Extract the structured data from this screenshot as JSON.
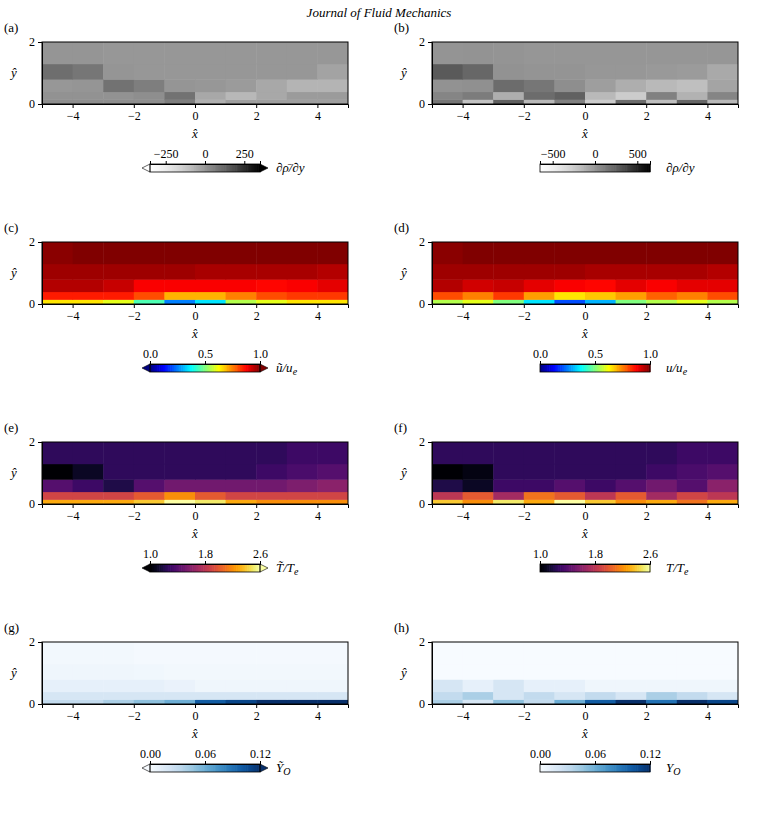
{
  "header": {
    "title": "Journal of Fluid Mechanics"
  },
  "chart_data": [
    {
      "type": "heatmap",
      "panel": "(a)",
      "xlabel": "x̂",
      "ylabel": "ŷ",
      "xlim": [
        -5,
        5
      ],
      "ylim": [
        0,
        2
      ],
      "xticks": [
        {
          "value": -4,
          "label": "−4"
        },
        {
          "value": -2,
          "label": "−2"
        },
        0,
        2,
        4
      ],
      "yticks": [
        0,
        2
      ],
      "x_edges": [
        -5,
        -4,
        -3,
        -2,
        -1,
        0,
        1,
        2,
        3,
        4,
        5
      ],
      "y_edges": [
        0,
        0.15,
        0.4,
        0.8,
        1.3,
        2
      ],
      "values": [
        [
          20,
          20,
          20,
          20,
          60,
          -60,
          -20,
          -20,
          -20,
          -20
        ],
        [
          10,
          10,
          10,
          20,
          90,
          -40,
          -80,
          -40,
          -10,
          -10
        ],
        [
          0,
          5,
          90,
          60,
          5,
          0,
          -10,
          -40,
          -70,
          -70
        ],
        [
          100,
          80,
          5,
          0,
          0,
          0,
          0,
          0,
          0,
          -30
        ],
        [
          5,
          5,
          0,
          0,
          0,
          0,
          0,
          0,
          0,
          0
        ]
      ],
      "colorbar": {
        "label": "∂ρ̄/∂y",
        "range": [
          -350,
          350
        ],
        "ticks": [
          {
            "value": -250,
            "label": "−250"
          },
          0,
          250
        ],
        "color": "Greys"
      }
    },
    {
      "type": "heatmap",
      "panel": "(b)",
      "xlabel": "x̂",
      "ylabel": "ŷ",
      "xlim": [
        -5,
        5
      ],
      "ylim": [
        0,
        2
      ],
      "xticks": [
        {
          "value": -4,
          "label": "−4"
        },
        {
          "value": -2,
          "label": "−2"
        },
        0,
        2,
        4
      ],
      "yticks": [
        0,
        2
      ],
      "x_edges": [
        -5,
        -4,
        -3,
        -2,
        -1,
        0,
        1,
        2,
        3,
        4,
        5
      ],
      "y_edges": [
        0,
        0.15,
        0.4,
        0.8,
        1.3,
        2
      ],
      "values": [
        [
          150,
          -200,
          250,
          -150,
          100,
          -250,
          200,
          -180,
          220,
          -150
        ],
        [
          80,
          120,
          -100,
          200,
          250,
          -150,
          -250,
          100,
          -120,
          80
        ],
        [
          20,
          30,
          200,
          150,
          40,
          -30,
          -100,
          -150,
          -180,
          -60
        ],
        [
          280,
          220,
          20,
          10,
          10,
          0,
          0,
          -10,
          -20,
          -80
        ],
        [
          10,
          15,
          10,
          5,
          5,
          5,
          5,
          5,
          5,
          5
        ]
      ],
      "colorbar": {
        "label": "∂ρ/∂y",
        "range": [
          -650,
          650
        ],
        "ticks": [
          {
            "value": -500,
            "label": "−500"
          },
          0,
          500
        ],
        "color": "Greys"
      }
    },
    {
      "type": "heatmap",
      "panel": "(c)",
      "xlabel": "x̂",
      "ylabel": "ŷ",
      "xlim": [
        -5,
        5
      ],
      "ylim": [
        0,
        2
      ],
      "xticks": [
        {
          "value": -4,
          "label": "−4"
        },
        {
          "value": -2,
          "label": "−2"
        },
        0,
        2,
        4
      ],
      "yticks": [
        0,
        2
      ],
      "x_edges": [
        -5,
        -4,
        -3,
        -2,
        -1,
        0,
        1,
        2,
        3,
        4,
        5
      ],
      "y_edges": [
        0,
        0.15,
        0.4,
        0.8,
        1.3,
        2
      ],
      "values": [
        [
          0.65,
          0.65,
          0.6,
          0.45,
          0.25,
          0.35,
          0.55,
          0.6,
          0.65,
          0.65
        ],
        [
          0.85,
          0.85,
          0.85,
          0.8,
          0.7,
          0.7,
          0.75,
          0.8,
          0.82,
          0.82
        ],
        [
          0.95,
          0.95,
          0.93,
          0.88,
          0.88,
          0.88,
          0.88,
          0.87,
          0.88,
          0.9
        ],
        [
          0.97,
          0.97,
          0.97,
          0.97,
          0.97,
          0.96,
          0.96,
          0.96,
          0.96,
          0.95
        ],
        [
          0.99,
          1.0,
          1.0,
          1.0,
          1.0,
          1.0,
          1.0,
          1.0,
          1.0,
          1.0
        ]
      ],
      "colorbar": {
        "label_main": "ũ/u",
        "label_sub": "e",
        "range": [
          0,
          1
        ],
        "ticks": [
          {
            "value": 0,
            "label": "0.0"
          },
          0.5,
          {
            "value": 1,
            "label": "1.0"
          }
        ],
        "color": "jet"
      }
    },
    {
      "type": "heatmap",
      "panel": "(d)",
      "xlabel": "x̂",
      "ylabel": "ŷ",
      "xlim": [
        -5,
        5
      ],
      "ylim": [
        0,
        2
      ],
      "xticks": [
        {
          "value": -4,
          "label": "−4"
        },
        {
          "value": -2,
          "label": "−2"
        },
        0,
        2,
        4
      ],
      "yticks": [
        0,
        2
      ],
      "x_edges": [
        -5,
        -4,
        -3,
        -2,
        -1,
        0,
        1,
        2,
        3,
        4,
        5
      ],
      "y_edges": [
        0,
        0.15,
        0.4,
        0.8,
        1.3,
        2
      ],
      "values": [
        [
          0.55,
          0.6,
          0.5,
          0.35,
          0.2,
          0.3,
          0.5,
          0.55,
          0.6,
          0.55
        ],
        [
          0.8,
          0.75,
          0.82,
          0.72,
          0.65,
          0.68,
          0.72,
          0.78,
          0.75,
          0.8
        ],
        [
          0.95,
          0.92,
          0.93,
          0.9,
          0.88,
          0.87,
          0.9,
          0.88,
          0.9,
          0.9
        ],
        [
          0.97,
          0.97,
          0.97,
          0.97,
          0.97,
          0.96,
          0.96,
          0.96,
          0.96,
          0.95
        ],
        [
          0.99,
          1.0,
          1.0,
          1.0,
          1.0,
          1.0,
          1.0,
          1.0,
          1.0,
          1.0
        ]
      ],
      "colorbar": {
        "label_main": "u/u",
        "label_sub": "e",
        "range": [
          0,
          1
        ],
        "ticks": [
          {
            "value": 0,
            "label": "0.0"
          },
          0.5,
          {
            "value": 1,
            "label": "1.0"
          }
        ],
        "color": "jet"
      }
    },
    {
      "type": "heatmap",
      "panel": "(e)",
      "xlabel": "x̂",
      "ylabel": "ŷ",
      "xlim": [
        -5,
        5
      ],
      "ylim": [
        0,
        2
      ],
      "xticks": [
        {
          "value": -4,
          "label": "−4"
        },
        {
          "value": -2,
          "label": "−2"
        },
        0,
        2,
        4
      ],
      "yticks": [
        0,
        2
      ],
      "x_edges": [
        -5,
        -4,
        -3,
        -2,
        -1,
        0,
        1,
        2,
        3,
        4,
        5
      ],
      "y_edges": [
        0,
        0.15,
        0.4,
        0.8,
        1.3,
        2
      ],
      "values": [
        [
          2.3,
          2.3,
          2.3,
          2.4,
          2.6,
          2.5,
          2.3,
          2.2,
          2.2,
          2.2
        ],
        [
          1.9,
          1.9,
          1.9,
          2.0,
          2.2,
          2.0,
          1.9,
          1.9,
          1.9,
          1.9
        ],
        [
          1.4,
          1.3,
          1.2,
          1.4,
          1.5,
          1.5,
          1.5,
          1.5,
          1.55,
          1.6
        ],
        [
          1.0,
          1.1,
          1.25,
          1.25,
          1.25,
          1.25,
          1.25,
          1.3,
          1.35,
          1.4
        ],
        [
          1.25,
          1.25,
          1.25,
          1.25,
          1.25,
          1.25,
          1.25,
          1.25,
          1.3,
          1.3
        ]
      ],
      "colorbar": {
        "label_main": "T̃/T",
        "label_sub": "e",
        "range": [
          1.0,
          2.6
        ],
        "ticks": [
          {
            "value": 1,
            "label": "1.0"
          },
          1.8,
          2.6
        ],
        "color": "Inferno"
      }
    },
    {
      "type": "heatmap",
      "panel": "(f)",
      "xlabel": "x̂",
      "ylabel": "ŷ",
      "xlim": [
        -5,
        5
      ],
      "ylim": [
        0,
        2
      ],
      "xticks": [
        {
          "value": -4,
          "label": "−4"
        },
        {
          "value": -2,
          "label": "−2"
        },
        0,
        2,
        4
      ],
      "yticks": [
        0,
        2
      ],
      "x_edges": [
        -5,
        -4,
        -3,
        -2,
        -1,
        0,
        1,
        2,
        3,
        4,
        5
      ],
      "y_edges": [
        0,
        0.15,
        0.4,
        0.8,
        1.3,
        2
      ],
      "values": [
        [
          2.4,
          2.2,
          2.5,
          2.3,
          2.6,
          2.4,
          2.2,
          2.3,
          2.1,
          2.3
        ],
        [
          1.8,
          2.0,
          1.7,
          2.1,
          2.0,
          1.8,
          2.0,
          1.7,
          1.9,
          1.8
        ],
        [
          1.2,
          1.1,
          1.3,
          1.3,
          1.4,
          1.3,
          1.4,
          1.5,
          1.4,
          1.6
        ],
        [
          1.0,
          1.05,
          1.25,
          1.25,
          1.25,
          1.25,
          1.25,
          1.3,
          1.35,
          1.4
        ],
        [
          1.25,
          1.25,
          1.25,
          1.25,
          1.25,
          1.25,
          1.25,
          1.25,
          1.3,
          1.3
        ]
      ],
      "colorbar": {
        "label_main": "T/T",
        "label_sub": "e",
        "range": [
          1.0,
          2.6
        ],
        "ticks": [
          {
            "value": 1,
            "label": "1.0"
          },
          1.8,
          2.6
        ],
        "color": "Inferno"
      }
    },
    {
      "type": "heatmap",
      "panel": "(g)",
      "xlabel": "x̂",
      "ylabel": "ŷ",
      "xlim": [
        -5,
        5
      ],
      "ylim": [
        0,
        2
      ],
      "xticks": [
        {
          "value": -4,
          "label": "−4"
        },
        {
          "value": -2,
          "label": "−2"
        },
        0,
        2,
        4
      ],
      "yticks": [
        0,
        2
      ],
      "x_edges": [
        -5,
        -4,
        -3,
        -2,
        -1,
        0,
        1,
        2,
        3,
        4,
        5
      ],
      "y_edges": [
        0,
        0.15,
        0.4,
        0.8,
        1.3,
        2
      ],
      "values": [
        [
          0.03,
          0.03,
          0.04,
          0.05,
          0.06,
          0.1,
          0.11,
          0.12,
          0.12,
          0.12
        ],
        [
          0.02,
          0.02,
          0.02,
          0.02,
          0.02,
          0.02,
          0.02,
          0.02,
          0.02,
          0.02
        ],
        [
          0.01,
          0.01,
          0.01,
          0.01,
          0.008,
          0.005,
          0.005,
          0.005,
          0.005,
          0.005
        ],
        [
          0.005,
          0.005,
          0.005,
          0.004,
          0.003,
          0.003,
          0.003,
          0.003,
          0.003,
          0.003
        ],
        [
          0.003,
          0.003,
          0.003,
          0.002,
          0.002,
          0.002,
          0.002,
          0.002,
          0.002,
          0.002
        ]
      ],
      "colorbar": {
        "label_main": "Ỹ",
        "label_sub": "O",
        "range": [
          0,
          0.12
        ],
        "ticks": [
          {
            "value": 0,
            "label": "0.00"
          },
          0.06,
          0.12
        ],
        "color": "Blues"
      }
    },
    {
      "type": "heatmap",
      "panel": "(h)",
      "xlabel": "x̂",
      "ylabel": "ŷ",
      "xlim": [
        -5,
        5
      ],
      "ylim": [
        0,
        2
      ],
      "xticks": [
        {
          "value": -4,
          "label": "−4"
        },
        {
          "value": -2,
          "label": "−2"
        },
        0,
        2,
        4
      ],
      "yticks": [
        0,
        2
      ],
      "x_edges": [
        -5,
        -4,
        -3,
        -2,
        -1,
        0,
        1,
        2,
        3,
        4,
        5
      ],
      "y_edges": [
        0,
        0.15,
        0.4,
        0.8,
        1.3,
        2
      ],
      "values": [
        [
          0.04,
          0.02,
          0.05,
          0.03,
          0.06,
          0.1,
          0.12,
          0.09,
          0.12,
          0.11
        ],
        [
          0.03,
          0.04,
          0.02,
          0.03,
          0.02,
          0.03,
          0.02,
          0.04,
          0.03,
          0.02
        ],
        [
          0.02,
          0.01,
          0.02,
          0.01,
          0.01,
          0.005,
          0.005,
          0.005,
          0.005,
          0.005
        ],
        [
          0,
          0,
          0,
          0,
          0,
          0,
          0,
          0,
          0,
          0
        ],
        [
          0,
          0,
          0,
          0,
          0,
          0,
          0,
          0,
          0,
          0
        ]
      ],
      "colorbar": {
        "label_main": "Y",
        "label_sub": "O",
        "range": [
          0,
          0.12
        ],
        "ticks": [
          {
            "value": 0,
            "label": "0.00"
          },
          0.06,
          0.12
        ],
        "color": "Blues"
      }
    }
  ]
}
